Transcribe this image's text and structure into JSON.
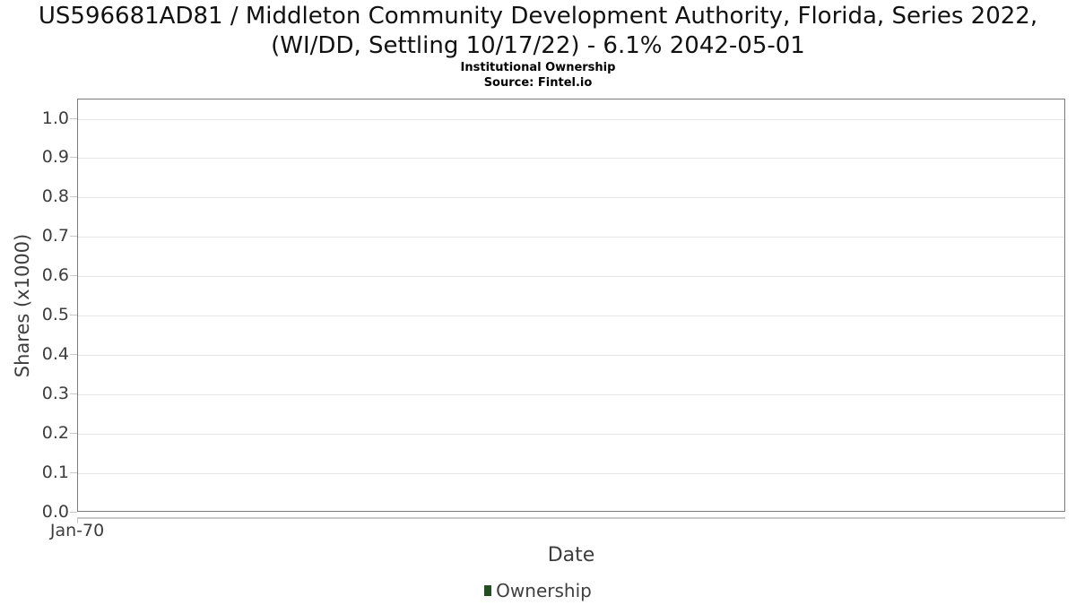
{
  "colors": {
    "legend_green": "#205020",
    "plot_border": "#7b7b7b",
    "gridline": "#e4e4e4",
    "axis_text": "#3d3d3d"
  },
  "chart": {
    "title": "US596681AD81 / Middleton Community Development Authority, Florida, Series 2022, (WI/DD, Settling 10/17/22) - 6.1% 2042-05-01",
    "subtitle": "Institutional Ownership",
    "source": "Source: Fintel.io",
    "y_axis_title": "Shares (x1000)",
    "x_axis_title": "Date",
    "x_tick_labels": [
      "Jan-70"
    ],
    "y_tick_labels": [
      "1.0",
      "0.9",
      "0.8",
      "0.7",
      "0.6",
      "0.5",
      "0.4",
      "0.3",
      "0.2",
      "0.1",
      "0.0"
    ],
    "legend": [
      {
        "label": "Ownership",
        "color": "#205020"
      }
    ]
  },
  "chart_data": {
    "type": "line",
    "title": "US596681AD81 / Middleton Community Development Authority, Florida, Series 2022, (WI/DD, Settling 10/17/22) - 6.1% 2042-05-01",
    "subtitle": "Institutional Ownership",
    "source": "Source: Fintel.io",
    "xlabel": "Date",
    "ylabel": "Shares (x1000)",
    "ylim": [
      0.0,
      1.05
    ],
    "yticks": [
      0.0,
      0.1,
      0.2,
      0.3,
      0.4,
      0.5,
      0.6,
      0.7,
      0.8,
      0.9,
      1.0
    ],
    "xticks": [
      "Jan-70"
    ],
    "grid": "horizontal",
    "legend_position": "bottom-center",
    "series": [
      {
        "name": "Ownership",
        "color": "#205020",
        "x": [],
        "values": []
      }
    ]
  }
}
